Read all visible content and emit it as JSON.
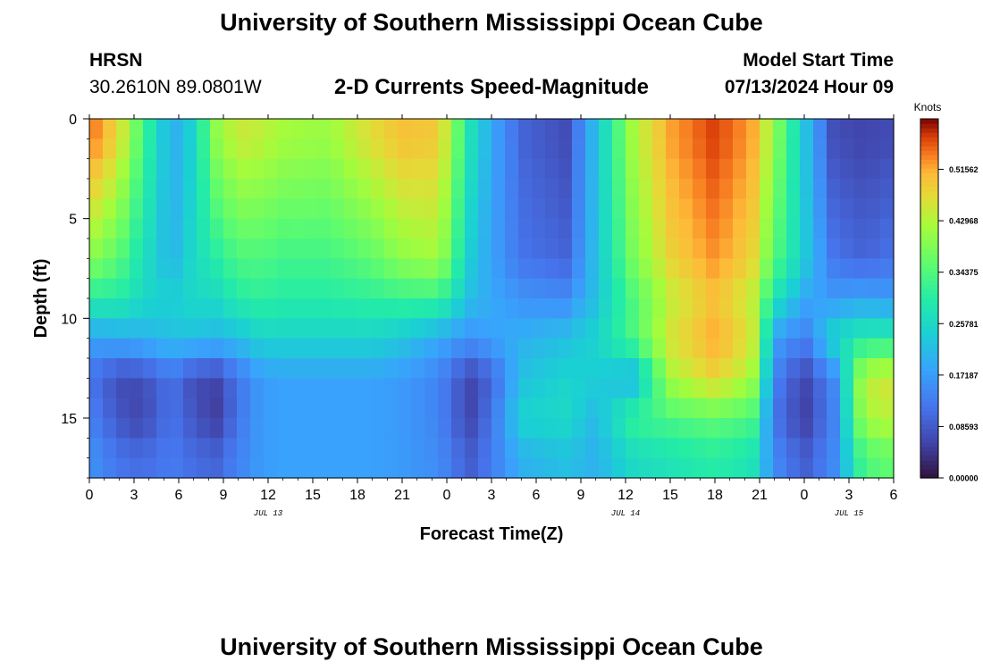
{
  "header": {
    "title": "University of Southern Mississippi Ocean Cube",
    "station_code": "HRSN",
    "station_coords": "30.2610N  89.0801W",
    "plot_title": "2-D Currents Speed-Magnitude",
    "model_start_label": "Model Start Time",
    "model_start_value": "07/13/2024 Hour 09"
  },
  "footer": {
    "title": "University of Southern Mississippi Ocean Cube"
  },
  "chart_data": {
    "type": "heatmap",
    "title": "2-D Currents Speed-Magnitude",
    "xlabel": "Forecast Time(Z)",
    "ylabel": "Depth (ft)",
    "x_range_hours": [
      0,
      54
    ],
    "y_range_ft": [
      0,
      18
    ],
    "y_inverted": true,
    "x_tick_labels": [
      "0",
      "3",
      "6",
      "9",
      "12",
      "15",
      "18",
      "21",
      "0",
      "3",
      "6",
      "9",
      "12",
      "15",
      "18",
      "21",
      "0",
      "3",
      "6"
    ],
    "y_tick_labels": [
      "0",
      "5",
      "10",
      "15"
    ],
    "y_tick_values": [
      0,
      5,
      10,
      15
    ],
    "date_labels": [
      {
        "label": "JUL 13",
        "hour": 12
      },
      {
        "label": "JUL 14",
        "hour": 36
      },
      {
        "label": "JUL 15",
        "hour": 51
      }
    ],
    "colorbar": {
      "title": "Knots",
      "min": 0.0,
      "max": 0.6,
      "tick_values": [
        0.51562,
        0.42968,
        0.34375,
        0.25781,
        0.17187,
        0.08593,
        0.0
      ],
      "tick_labels": [
        "0.51562",
        "0.42968",
        "0.34375",
        "0.25781",
        "0.17187",
        "0.08593",
        "0.00000"
      ]
    },
    "speed_layers_knots": {
      "depths_ft": [
        1,
        7,
        9,
        11,
        13,
        15,
        17
      ],
      "hours": [
        0,
        2,
        3.5,
        5.5,
        7,
        8.5,
        10,
        11.5,
        13,
        16,
        19,
        21,
        23.5,
        25.5,
        27,
        29,
        32,
        34,
        36.5,
        39,
        42,
        44.5,
        46,
        48,
        50,
        52,
        54
      ],
      "top": [
        0.55,
        0.47,
        0.34,
        0.19,
        0.25,
        0.4,
        0.45,
        0.44,
        0.42,
        0.41,
        0.47,
        0.5,
        0.49,
        0.28,
        0.19,
        0.1,
        0.07,
        0.22,
        0.42,
        0.52,
        0.57,
        0.52,
        0.4,
        0.23,
        0.07,
        0.06,
        0.07
      ],
      "mid": [
        0.4,
        0.35,
        0.28,
        0.2,
        0.26,
        0.3,
        0.34,
        0.34,
        0.33,
        0.33,
        0.36,
        0.4,
        0.42,
        0.24,
        0.18,
        0.12,
        0.1,
        0.22,
        0.38,
        0.48,
        0.53,
        0.48,
        0.35,
        0.24,
        0.12,
        0.1,
        0.12
      ],
      "pycno": [
        0.3,
        0.3,
        0.26,
        0.24,
        0.26,
        0.26,
        0.3,
        0.31,
        0.3,
        0.3,
        0.31,
        0.32,
        0.32,
        0.22,
        0.19,
        0.16,
        0.15,
        0.22,
        0.34,
        0.44,
        0.5,
        0.44,
        0.28,
        0.19,
        0.17,
        0.18,
        0.17
      ],
      "upper_bottom": [
        0.18,
        0.19,
        0.2,
        0.22,
        0.22,
        0.21,
        0.22,
        0.25,
        0.25,
        0.25,
        0.25,
        0.23,
        0.19,
        0.16,
        0.18,
        0.2,
        0.22,
        0.25,
        0.34,
        0.46,
        0.52,
        0.46,
        0.18,
        0.13,
        0.26,
        0.3,
        0.3
      ],
      "bottom": [
        0.12,
        0.07,
        0.07,
        0.12,
        0.07,
        0.06,
        0.12,
        0.17,
        0.18,
        0.18,
        0.18,
        0.17,
        0.14,
        0.06,
        0.1,
        0.22,
        0.25,
        0.24,
        0.2,
        0.42,
        0.48,
        0.42,
        0.14,
        0.06,
        0.15,
        0.44,
        0.46
      ],
      "deep": [
        0.14,
        0.08,
        0.06,
        0.12,
        0.08,
        0.05,
        0.12,
        0.17,
        0.18,
        0.18,
        0.18,
        0.17,
        0.14,
        0.06,
        0.12,
        0.25,
        0.26,
        0.21,
        0.32,
        0.34,
        0.36,
        0.34,
        0.12,
        0.05,
        0.14,
        0.42,
        0.44
      ],
      "floor": [
        0.16,
        0.12,
        0.11,
        0.13,
        0.11,
        0.1,
        0.14,
        0.17,
        0.18,
        0.18,
        0.18,
        0.17,
        0.15,
        0.09,
        0.13,
        0.2,
        0.22,
        0.2,
        0.26,
        0.28,
        0.3,
        0.28,
        0.15,
        0.09,
        0.15,
        0.34,
        0.36
      ]
    }
  }
}
